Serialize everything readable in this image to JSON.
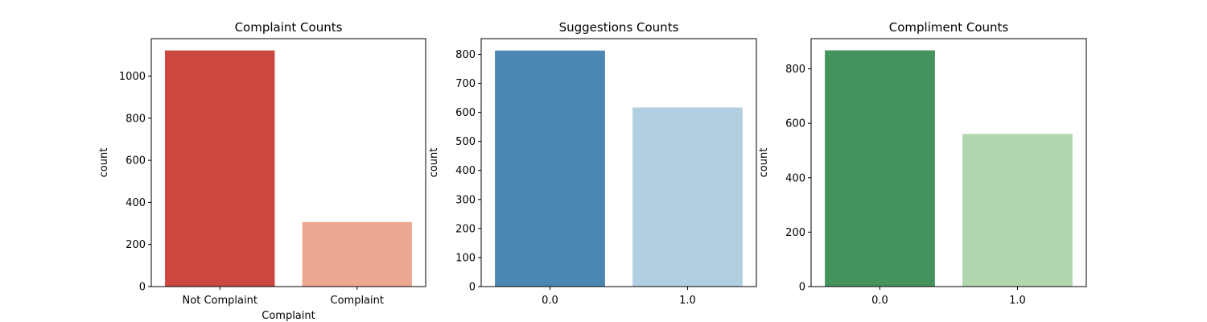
{
  "chart_data": [
    {
      "type": "bar",
      "title": "Complaint Counts",
      "xlabel": "Complaint",
      "ylabel": "count",
      "categories": [
        "Not Complaint",
        "Complaint"
      ],
      "values": [
        1122,
        307
      ],
      "colors": [
        "#cb4740",
        "#eea891"
      ],
      "ylim": [
        0,
        1178
      ],
      "yticks": [
        0,
        200,
        400,
        600,
        800,
        1000
      ],
      "grid": false
    },
    {
      "type": "bar",
      "title": "Suggestions Counts",
      "xlabel": "",
      "ylabel": "count",
      "categories": [
        "0.0",
        "1.0"
      ],
      "values": [
        813,
        617
      ],
      "colors": [
        "#4a87b3",
        "#b2cfe2"
      ],
      "ylim": [
        0,
        854
      ],
      "yticks": [
        0,
        100,
        200,
        300,
        400,
        500,
        600,
        700,
        800
      ],
      "grid": false
    },
    {
      "type": "bar",
      "title": "Compliment Counts",
      "xlabel": "",
      "ylabel": "count",
      "categories": [
        "0.0",
        "1.0"
      ],
      "values": [
        868,
        561
      ],
      "colors": [
        "#45935c",
        "#b2d6ae"
      ],
      "ylim": [
        0,
        911
      ],
      "yticks": [
        0,
        200,
        400,
        600,
        800
      ],
      "grid": false
    }
  ]
}
